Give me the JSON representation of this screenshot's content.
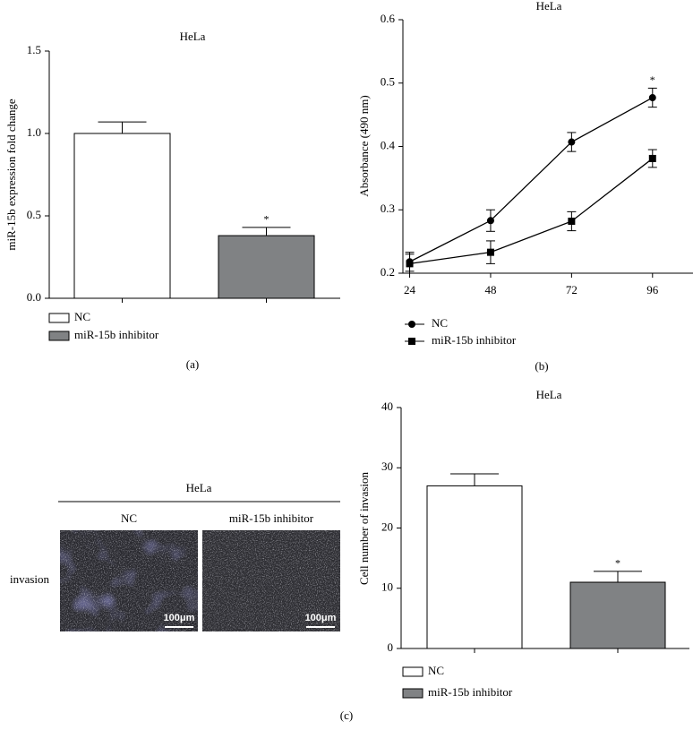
{
  "chart_data": [
    {
      "type": "bar",
      "title": "HeLa",
      "ylabel": "miR-15b expression fold change",
      "panel_label": "(a)",
      "series": [
        {
          "name": "NC",
          "color": "#ffffff",
          "values": [
            1.0
          ],
          "errors": [
            0.07
          ]
        },
        {
          "name": "miR-15b inhibitor",
          "color": "#808284",
          "values": [
            0.38
          ],
          "errors": [
            0.05
          ]
        }
      ],
      "annotation": "*",
      "ylim": [
        0,
        1.5
      ],
      "yticks": [
        {
          "value": 0,
          "label": "0.0"
        },
        {
          "value": 0.5,
          "label": "0.5"
        },
        {
          "value": 1,
          "label": "1.0"
        },
        {
          "value": 1.5,
          "label": "1.5"
        }
      ]
    },
    {
      "type": "line",
      "title": "HeLa",
      "ylabel": "Absorbance (490 nm)",
      "panel_label": "(b)",
      "x": [
        24,
        48,
        72,
        96
      ],
      "series": [
        {
          "name": "NC",
          "color": "#000000",
          "marker": "circle",
          "values": [
            0.218,
            0.283,
            0.407,
            0.477
          ],
          "errors": [
            0.015,
            0.017,
            0.015,
            0.015
          ]
        },
        {
          "name": "miR-15b inhibitor",
          "color": "#000000",
          "marker": "square",
          "values": [
            0.215,
            0.233,
            0.282,
            0.381
          ],
          "errors": [
            0.015,
            0.018,
            0.015,
            0.014
          ]
        }
      ],
      "annotation": "*",
      "xlim": [
        22,
        108
      ],
      "xticks": [
        24,
        48,
        72,
        96
      ],
      "ylim": [
        0.2,
        0.6
      ],
      "yticks": [
        0.2,
        0.3,
        0.4,
        0.5,
        0.6
      ]
    },
    {
      "type": "bar",
      "title": "HeLa",
      "ylabel": "Cell number of invasion",
      "panel_label": "(c)",
      "series": [
        {
          "name": "NC",
          "color": "#ffffff",
          "values": [
            27
          ],
          "errors": [
            2
          ]
        },
        {
          "name": "miR-15b inhibitor",
          "color": "#808284",
          "values": [
            11
          ],
          "errors": [
            1.8
          ]
        }
      ],
      "annotation": "*",
      "ylim": [
        0,
        40
      ],
      "yticks": [
        0,
        10,
        20,
        30,
        40
      ]
    }
  ],
  "image_panel": {
    "title": "HeLa",
    "columns": [
      "NC",
      "miR-15b inhibitor"
    ],
    "row_label": "invasion",
    "scale_bars": [
      "100μm",
      "100μm"
    ]
  }
}
